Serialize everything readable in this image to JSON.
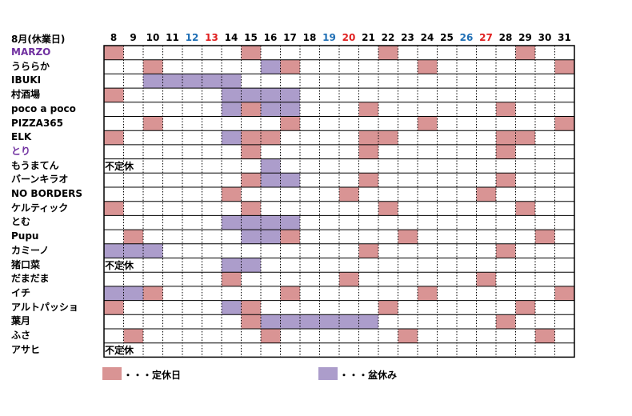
{
  "title": "8月(休業日)",
  "colors": {
    "regular_holiday": "#d99494",
    "bon_holiday": "#ac9dcb",
    "saturday": "#1f6fb5",
    "sunday": "#e02020",
    "highlight_name": "#7030a0",
    "grid": "#000000"
  },
  "days": [
    {
      "label": "8",
      "type": "weekday"
    },
    {
      "label": "9",
      "type": "weekday"
    },
    {
      "label": "10",
      "type": "weekday"
    },
    {
      "label": "11",
      "type": "weekday"
    },
    {
      "label": "12",
      "type": "saturday"
    },
    {
      "label": "13",
      "type": "sunday"
    },
    {
      "label": "14",
      "type": "weekday"
    },
    {
      "label": "15",
      "type": "weekday"
    },
    {
      "label": "16",
      "type": "weekday"
    },
    {
      "label": "17",
      "type": "weekday"
    },
    {
      "label": "18",
      "type": "weekday"
    },
    {
      "label": "19",
      "type": "saturday"
    },
    {
      "label": "20",
      "type": "sunday"
    },
    {
      "label": "21",
      "type": "weekday"
    },
    {
      "label": "22",
      "type": "weekday"
    },
    {
      "label": "23",
      "type": "weekday"
    },
    {
      "label": "24",
      "type": "weekday"
    },
    {
      "label": "25",
      "type": "weekday"
    },
    {
      "label": "26",
      "type": "saturday"
    },
    {
      "label": "27",
      "type": "sunday"
    },
    {
      "label": "28",
      "type": "weekday"
    },
    {
      "label": "29",
      "type": "weekday"
    },
    {
      "label": "30",
      "type": "weekday"
    },
    {
      "label": "31",
      "type": "weekday"
    }
  ],
  "shops": [
    {
      "name": "MARZO",
      "highlight": true,
      "note": "",
      "cells": "T......T......T......T.."
    },
    {
      "name": "うららか",
      "highlight": false,
      "note": "",
      "cells": "..T.....BT......T......T"
    },
    {
      "name": "IBUKI",
      "highlight": false,
      "note": "",
      "cells": "..BBBBB................."
    },
    {
      "name": "村酒場",
      "highlight": false,
      "note": "",
      "cells": "T.....BBBB.............."
    },
    {
      "name": "poco a poco",
      "highlight": false,
      "note": "",
      "cells": "......BTBB...T......T..."
    },
    {
      "name": "PIZZA365",
      "highlight": false,
      "note": "",
      "cells": "..T......T......T......T"
    },
    {
      "name": "ELK",
      "highlight": false,
      "note": "",
      "cells": "T.....BTT....TT.....TT.."
    },
    {
      "name": "とり",
      "highlight": true,
      "note": "",
      "cells": ".......T.....T......T..."
    },
    {
      "name": "もうまてん",
      "highlight": false,
      "note": "不定休",
      "cells": "........B..............."
    },
    {
      "name": "バーンキラオ",
      "highlight": false,
      "note": "",
      "cells": ".......TBB...T......T..."
    },
    {
      "name": "NO BORDERS",
      "highlight": false,
      "note": "",
      "cells": "......T.....T......T...."
    },
    {
      "name": "ケルティック",
      "highlight": false,
      "note": "",
      "cells": "T......T......T......T.."
    },
    {
      "name": "とむ",
      "highlight": false,
      "note": "",
      "cells": "......BBBB.............."
    },
    {
      "name": "Pupu",
      "highlight": false,
      "note": "",
      "cells": ".T.....BBT.....T......T."
    },
    {
      "name": "カミーノ",
      "highlight": false,
      "note": "",
      "cells": "BBB..........T......T..."
    },
    {
      "name": "猪口菜",
      "highlight": false,
      "note": "不定休",
      "cells": "......BB................"
    },
    {
      "name": "だまだま",
      "highlight": false,
      "note": "",
      "cells": "......T.....T......T...."
    },
    {
      "name": "イチ",
      "highlight": false,
      "note": "",
      "cells": "BBT......T......T......T"
    },
    {
      "name": "アルトパッショ",
      "highlight": false,
      "note": "",
      "cells": "T.....BT......T......T.."
    },
    {
      "name": "葉月",
      "highlight": false,
      "note": "",
      "cells": ".......TBBBBBB......T..."
    },
    {
      "name": "ふさ",
      "highlight": false,
      "note": "",
      "cells": ".T......T......T......T."
    },
    {
      "name": "アサヒ",
      "highlight": false,
      "note": "不定休",
      "cells": "........................"
    }
  ],
  "legend": [
    {
      "kind": "regular_holiday",
      "text": "・・・定休日"
    },
    {
      "kind": "bon_holiday",
      "text": "・・・盆休み"
    }
  ]
}
